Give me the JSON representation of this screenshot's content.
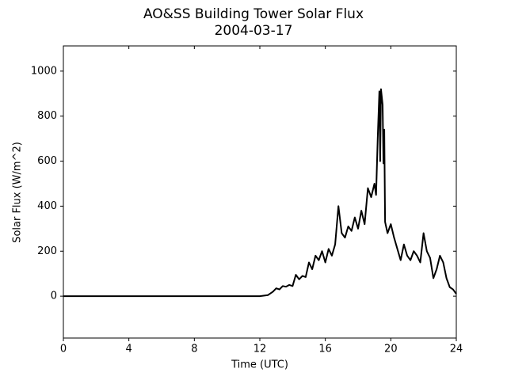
{
  "chart_data": {
    "type": "line",
    "title": "AO&SS Building Tower Solar Flux",
    "subtitle": "2004-03-17",
    "x_label": "Time (UTC)",
    "y_label": "Solar Flux (W/m^2)",
    "xlim": [
      0,
      24
    ],
    "xticks": [
      0,
      4,
      8,
      12,
      16,
      20,
      24
    ],
    "ylim": [
      -186,
      1112
    ],
    "yticks": [
      0,
      200,
      400,
      600,
      800,
      1000
    ],
    "grid": false,
    "series": [
      {
        "name": "Solar Flux",
        "color": "#000000",
        "x": [
          0,
          4,
          8,
          12,
          12.5,
          12.8,
          13.0,
          13.2,
          13.4,
          13.6,
          13.8,
          14.0,
          14.2,
          14.4,
          14.6,
          14.8,
          15.0,
          15.2,
          15.4,
          15.6,
          15.8,
          16.0,
          16.2,
          16.4,
          16.6,
          16.8,
          17.0,
          17.2,
          17.4,
          17.6,
          17.8,
          18.0,
          18.2,
          18.4,
          18.6,
          18.8,
          19.0,
          19.1,
          19.2,
          19.3,
          19.35,
          19.4,
          19.5,
          19.55,
          19.6,
          19.65,
          19.8,
          20.0,
          20.2,
          20.4,
          20.6,
          20.8,
          21.0,
          21.2,
          21.4,
          21.6,
          21.8,
          22.0,
          22.2,
          22.4,
          22.6,
          22.8,
          23.0,
          23.2,
          23.4,
          23.6,
          23.8,
          24
        ],
        "values": [
          0,
          0,
          0,
          0,
          5,
          20,
          35,
          30,
          45,
          42,
          50,
          45,
          95,
          75,
          90,
          85,
          150,
          120,
          180,
          160,
          200,
          150,
          210,
          180,
          230,
          400,
          280,
          260,
          310,
          290,
          350,
          300,
          380,
          320,
          480,
          440,
          500,
          450,
          700,
          910,
          600,
          920,
          850,
          590,
          740,
          330,
          280,
          320,
          260,
          210,
          160,
          230,
          180,
          160,
          200,
          180,
          150,
          280,
          200,
          170,
          80,
          120,
          180,
          150,
          80,
          40,
          30,
          10
        ]
      }
    ]
  }
}
